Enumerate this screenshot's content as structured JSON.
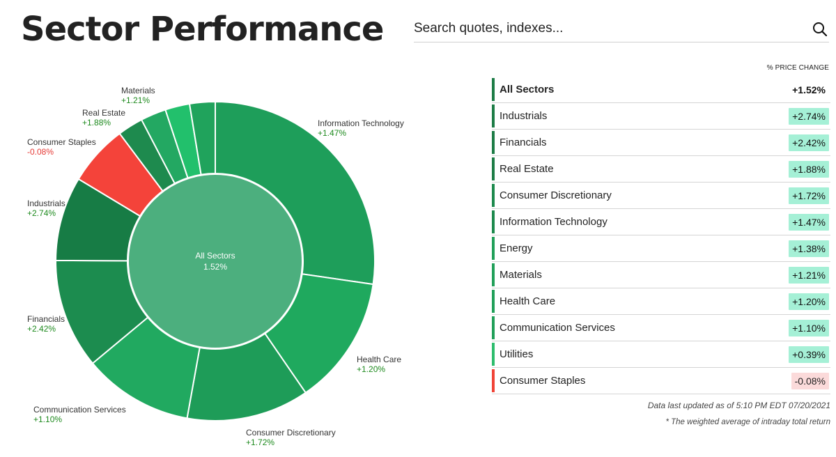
{
  "page": {
    "title": "Sector Performance"
  },
  "search": {
    "placeholder": "Search quotes, indexes...",
    "icon": "search-icon"
  },
  "table": {
    "header": "% PRICE CHANGE",
    "rows": [
      {
        "name": "All Sectors",
        "value": "+1.52%",
        "bar_color": "#1e7d47",
        "val_bg": "transparent"
      },
      {
        "name": "Industrials",
        "value": "+2.74%",
        "bar_color": "#1e7d47",
        "val_bg": "#a5f0d6"
      },
      {
        "name": "Financials",
        "value": "+2.42%",
        "bar_color": "#1e7d47",
        "val_bg": "#a5f0d6"
      },
      {
        "name": "Real Estate",
        "value": "+1.88%",
        "bar_color": "#1e7d47",
        "val_bg": "#a5f0d6"
      },
      {
        "name": "Consumer Discretionary",
        "value": "+1.72%",
        "bar_color": "#1e8a4e",
        "val_bg": "#a5f0d6"
      },
      {
        "name": "Information Technology",
        "value": "+1.47%",
        "bar_color": "#1e8a4e",
        "val_bg": "#a5f0d6"
      },
      {
        "name": "Energy",
        "value": "+1.38%",
        "bar_color": "#22a05a",
        "val_bg": "#a5f0d6"
      },
      {
        "name": "Materials",
        "value": "+1.21%",
        "bar_color": "#22a05a",
        "val_bg": "#a5f0d6"
      },
      {
        "name": "Health Care",
        "value": "+1.20%",
        "bar_color": "#22a05a",
        "val_bg": "#a5f0d6"
      },
      {
        "name": "Communication Services",
        "value": "+1.10%",
        "bar_color": "#22a05a",
        "val_bg": "#a5f0d6"
      },
      {
        "name": "Utilities",
        "value": "+0.39%",
        "bar_color": "#2fbd6e",
        "val_bg": "#a5f0d6"
      },
      {
        "name": "Consumer Staples",
        "value": "-0.08%",
        "bar_color": "#f04438",
        "val_bg": "#fbdada"
      }
    ]
  },
  "footer": {
    "updated": "Data last updated as of 5:10 PM EDT 07/20/2021",
    "note": "* The weighted average of intraday total return"
  },
  "chart_data": {
    "type": "pie",
    "center": {
      "label": "All Sectors",
      "value": "1.52%",
      "color": "#4caf7e"
    },
    "slices": [
      {
        "name": "Information Technology",
        "change": "+1.47%",
        "weight": 27.5,
        "color": "#1e9e5a",
        "label": true
      },
      {
        "name": "Health Care",
        "change": "+1.20%",
        "weight": 13.2,
        "color": "#1fa95e",
        "label": true
      },
      {
        "name": "Consumer Discretionary",
        "change": "+1.72%",
        "weight": 12.5,
        "color": "#1e9c58",
        "label": true
      },
      {
        "name": "Communication Services",
        "change": "+1.10%",
        "weight": 11.2,
        "color": "#21a960",
        "label": true
      },
      {
        "name": "Financials",
        "change": "+2.42%",
        "weight": 11.2,
        "color": "#1c8c4f",
        "label": true
      },
      {
        "name": "Industrials",
        "change": "+2.74%",
        "weight": 8.6,
        "color": "#177c45",
        "label": true
      },
      {
        "name": "Consumer Staples",
        "change": "-0.08%",
        "weight": 6.2,
        "color": "#f4433a",
        "label": true
      },
      {
        "name": "Real Estate",
        "change": "+1.88%",
        "weight": 2.6,
        "color": "#1e8a4e",
        "label": true
      },
      {
        "name": "",
        "change": "",
        "weight": 2.6,
        "color": "#23a862",
        "label": false
      },
      {
        "name": "Materials",
        "change": "+1.21%",
        "weight": 2.5,
        "color": "#22c06c",
        "label": true
      },
      {
        "name": "",
        "change": "",
        "weight": 2.6,
        "color": "#20a35c",
        "label": false
      }
    ],
    "label_colors": {
      "positive": "#1e8a1e",
      "negative": "#e53935",
      "name": "#333333"
    }
  }
}
